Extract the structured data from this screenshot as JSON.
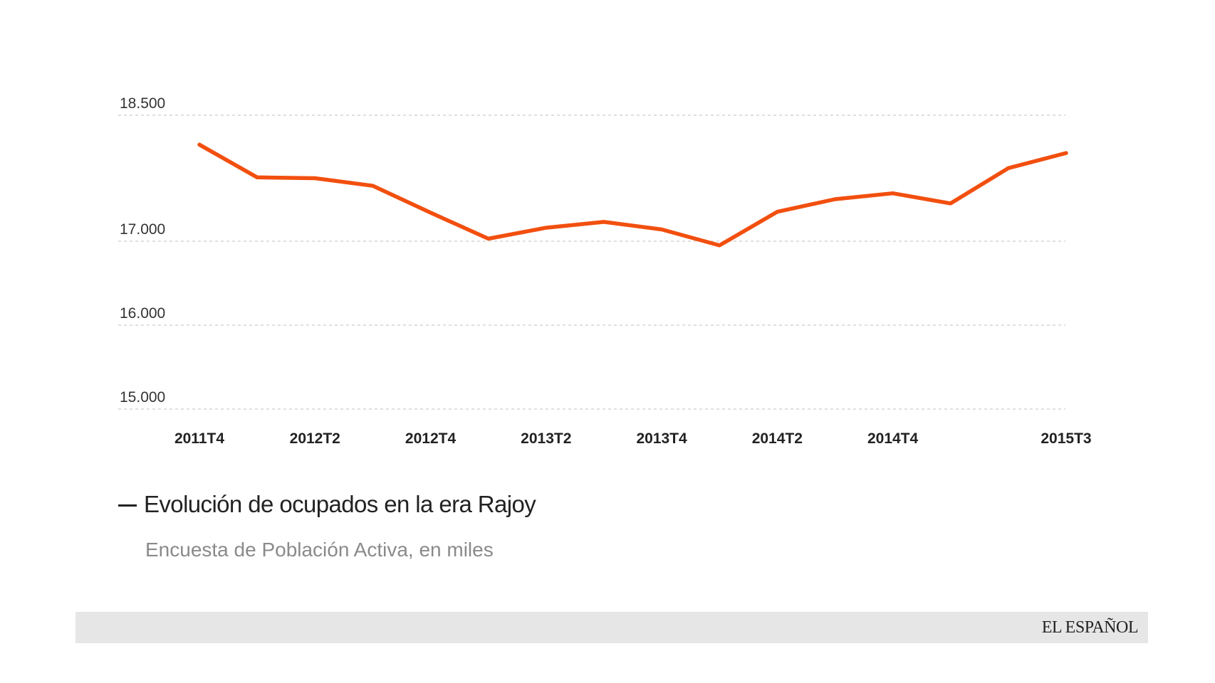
{
  "chart_data": {
    "type": "line",
    "title": "Evolución de ocupados en la era Rajoy",
    "subtitle": "Encuesta de Población Activa, en miles",
    "line_color": "#f24f0f",
    "y_ticks": [
      {
        "value": 15000,
        "label": "15.000"
      },
      {
        "value": 16000,
        "label": "16.000"
      },
      {
        "value": 17000,
        "label": "17.000"
      },
      {
        "value": 18500,
        "label": "18.500"
      }
    ],
    "x_labels": [
      {
        "index": 0,
        "label": "2011T4"
      },
      {
        "index": 2,
        "label": "2012T2"
      },
      {
        "index": 4,
        "label": "2012T4"
      },
      {
        "index": 6,
        "label": "2013T2"
      },
      {
        "index": 8,
        "label": "2013T4"
      },
      {
        "index": 10,
        "label": "2014T2"
      },
      {
        "index": 12,
        "label": "2014T4"
      },
      {
        "index": 15,
        "label": "2015T3"
      }
    ],
    "series": [
      {
        "x": [
          "2011T4",
          "2012T1",
          "2012T2",
          "2012T3",
          "2012T4",
          "2013T1",
          "2013T2",
          "2013T3",
          "2013T4",
          "2014T1",
          "2014T2",
          "2014T3",
          "2014T4",
          "2015T1",
          "2015T2",
          "2015T3"
        ],
        "values": [
          18150,
          17760,
          17750,
          17660,
          17340,
          17030,
          17160,
          17230,
          17140,
          16950,
          17350,
          17500,
          17570,
          17450,
          17870,
          18050
        ]
      }
    ]
  },
  "footer": {
    "brand": "EL ESPAÑOL"
  }
}
